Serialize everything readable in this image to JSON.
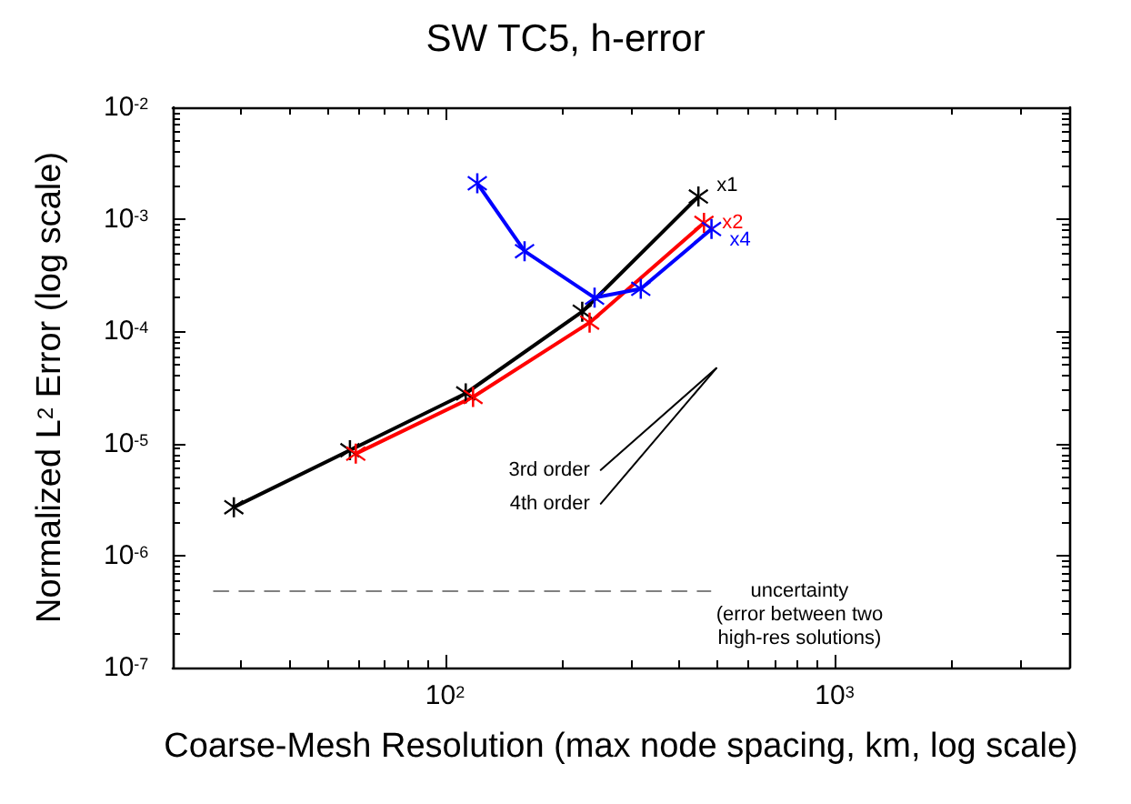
{
  "chart_data": {
    "type": "line",
    "title": "SW TC5, h-error",
    "xlabel": "Coarse-Mesh Resolution (max node spacing, km, log scale)",
    "ylabel": "Normalized L$^{2}$ Error (log scale)",
    "log": "xy",
    "grid": false,
    "legend": false,
    "marker": "cross",
    "line_style": "solid",
    "xlim": [
      20,
      4000
    ],
    "xticks": [
      {
        "value": 100,
        "label": "10$^{2}$"
      },
      {
        "value": 1000,
        "label": "10$^{3}$"
      }
    ],
    "ylim": [
      1e-07,
      0.01
    ],
    "yticks": [
      {
        "value": 1e-07,
        "label": "10$^{-7}$"
      },
      {
        "value": 1e-06,
        "label": "10$^{-6}$"
      },
      {
        "value": 1e-05,
        "label": "10$^{-5}$"
      },
      {
        "value": 0.0001,
        "label": "10$^{-4}$"
      },
      {
        "value": 0.001,
        "label": "10$^{-3}$"
      },
      {
        "value": 0.01,
        "label": "10$^{-2}$"
      }
    ],
    "series": [
      {
        "name": "x1",
        "color": "#000000",
        "x": [
          28.7,
          57,
          113,
          225,
          447
        ],
        "values": [
          2.7e-06,
          8.7e-06,
          2.8e-05,
          0.00015,
          0.0016
        ]
      },
      {
        "name": "x2",
        "color": "#ff0000",
        "x": [
          59,
          118,
          235,
          462
        ],
        "values": [
          8.1e-06,
          2.6e-05,
          0.00012,
          0.00093
        ]
      },
      {
        "name": "x4",
        "color": "#0000ff",
        "x": [
          121,
          160,
          242,
          318,
          483
        ],
        "values": [
          0.0021,
          0.00052,
          0.0002,
          0.00024,
          0.00082
        ]
      },
      {
        "name": "3rd order",
        "color": "#000000",
        "marker": "none",
        "x": [
          251,
          497
        ],
        "values": [
          5.8e-06,
          4.7e-05
        ]
      },
      {
        "name": "4th order",
        "color": "#000000",
        "marker": "none",
        "x": [
          251,
          497
        ],
        "values": [
          2.9e-06,
          4.7e-05
        ]
      },
      {
        "color": "#808080",
        "marker": "none",
        "line_style": "dashed",
        "x": [
          25.5,
          480
        ],
        "values": [
          4.8e-07,
          4.8e-07
        ]
      }
    ],
    "annotations": [
      "uncertainty\n(error between two\nhigh-res solutions)"
    ]
  }
}
